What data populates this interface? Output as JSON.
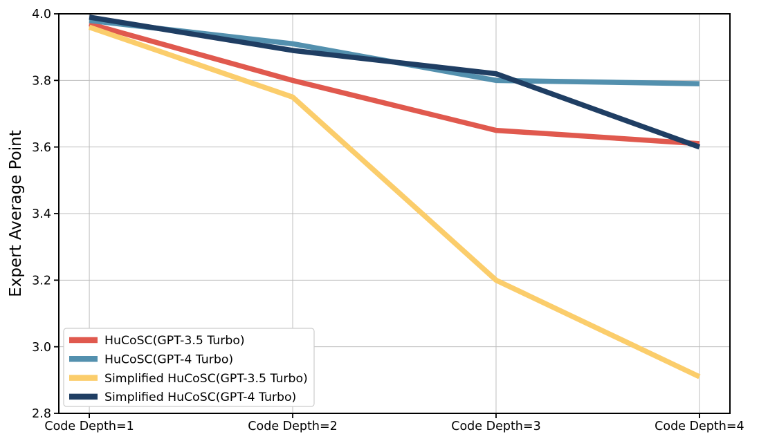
{
  "figure": {
    "background": "#ffffff",
    "axis_color": "#000000",
    "grid_color": "#bdbdbd",
    "legend_border_color": "#cccccc",
    "legend_background": "#ffffff"
  },
  "chart_data": {
    "type": "line",
    "title": "",
    "xlabel": "",
    "ylabel": "Expert Average Point",
    "categories": [
      "Code Depth=1",
      "Code Depth=2",
      "Code Depth=3",
      "Code Depth=4"
    ],
    "ylim": [
      2.8,
      4.0
    ],
    "yticks": [
      2.8,
      3.0,
      3.2,
      3.4,
      3.6,
      3.8,
      4.0
    ],
    "grid": true,
    "legend_position": "lower left",
    "series": [
      {
        "name": "HuCoSC(GPT-3.5 Turbo)",
        "color": "#E0594E",
        "values": [
          3.97,
          3.8,
          3.65,
          3.61
        ]
      },
      {
        "name": "HuCoSC(GPT-4 Turbo)",
        "color": "#5390AE",
        "values": [
          3.98,
          3.91,
          3.8,
          3.79
        ]
      },
      {
        "name": "Simplified HuCoSC(GPT-3.5 Turbo)",
        "color": "#FBCD6B",
        "values": [
          3.96,
          3.75,
          3.2,
          2.91
        ]
      },
      {
        "name": "Simplified HuCoSC(GPT-4 Turbo)",
        "color": "#1F3E63",
        "values": [
          3.99,
          3.89,
          3.82,
          3.6
        ]
      }
    ]
  }
}
